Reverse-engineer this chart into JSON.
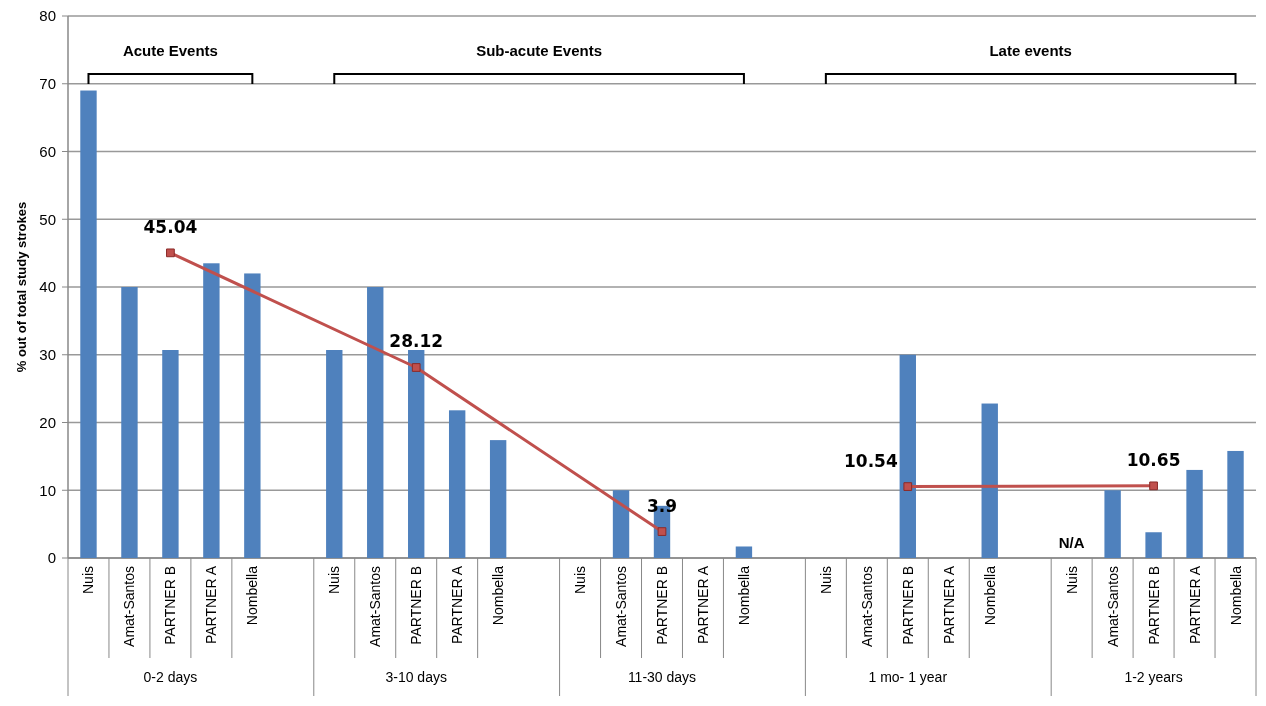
{
  "chart_data": {
    "type": "bar",
    "ylabel": "% out of total study strokes",
    "categories": [
      "Nuis",
      "Amat-Santos",
      "PARTNER B",
      "PARTNER A",
      "Nombella",
      null,
      "Nuis",
      "Amat-Santos",
      "PARTNER B",
      "PARTNER A",
      "Nombella",
      null,
      "Nuis",
      "Amat-Santos",
      "PARTNER B",
      "PARTNER A",
      "Nombella",
      null,
      "Nuis",
      "Amat-Santos",
      "PARTNER B",
      "PARTNER A",
      "Nombella",
      null,
      "Nuis",
      "Amat-Santos",
      "PARTNER B",
      "PARTNER A",
      "Nombella"
    ],
    "series": [
      {
        "color": "#4f81bd",
        "values": [
          69,
          40,
          30.7,
          43.5,
          42,
          null,
          30.7,
          40,
          30.7,
          21.8,
          17.4,
          null,
          0,
          10,
          7.7,
          0,
          1.7,
          null,
          0,
          0,
          30,
          0,
          22.8,
          null,
          null,
          10,
          3.8,
          13,
          15.8
        ],
        "value_labels": [
          null,
          null,
          null,
          null,
          null,
          null,
          null,
          null,
          null,
          null,
          null,
          null,
          null,
          null,
          null,
          null,
          null,
          null,
          null,
          null,
          null,
          null,
          null,
          null,
          "N/A",
          null,
          null,
          null,
          null
        ]
      },
      {
        "type": "line",
        "color": "#c0504d",
        "values": [
          null,
          null,
          45.04,
          null,
          null,
          null,
          null,
          null,
          28.12,
          null,
          null,
          null,
          null,
          null,
          3.9,
          null,
          null,
          null,
          null,
          null,
          null,
          null,
          null,
          null,
          null,
          null,
          null,
          null,
          null
        ],
        "value_labels": [
          null,
          null,
          "45.04",
          null,
          null,
          null,
          null,
          null,
          "28.12",
          null,
          null,
          null,
          null,
          null,
          "3.9",
          null,
          null,
          null,
          null,
          null,
          null,
          null,
          null,
          null,
          null,
          null,
          null,
          null,
          null
        ]
      },
      {
        "type": "line",
        "color": "#c0504d",
        "values": [
          null,
          null,
          null,
          null,
          null,
          null,
          null,
          null,
          null,
          null,
          null,
          null,
          null,
          null,
          null,
          null,
          null,
          null,
          null,
          null,
          10.54,
          null,
          null,
          null,
          null,
          null,
          10.65,
          null,
          null
        ],
        "value_labels": [
          null,
          null,
          null,
          null,
          null,
          null,
          null,
          null,
          null,
          null,
          null,
          null,
          null,
          null,
          null,
          null,
          null,
          null,
          null,
          null,
          "10.54",
          null,
          null,
          null,
          null,
          null,
          "10.65",
          null,
          null
        ]
      }
    ],
    "ylim": [
      0,
      80
    ],
    "yticks": [
      0,
      10,
      20,
      30,
      40,
      50,
      60,
      70,
      80
    ],
    "grid": "y",
    "marker": "square",
    "annotations": [
      "Acute Events",
      "Sub-acute Events",
      "Late events",
      "0-2 days",
      "3-10 days",
      "11-30 days",
      "1 mo- 1 year",
      "1-2 years"
    ]
  }
}
